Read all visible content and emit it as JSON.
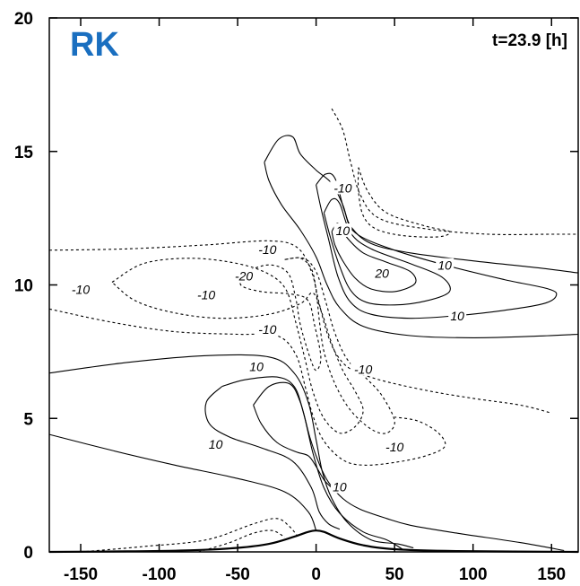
{
  "chart_data": {
    "type": "contour",
    "panel_label": "RK",
    "panel_label_color": "#1a6fc0",
    "time_annotation": "t=23.9 [h]",
    "xlabel": "",
    "ylabel": "",
    "xlim": [
      -170,
      167
    ],
    "ylim": [
      0,
      20
    ],
    "x_ticks": [
      -150,
      -100,
      -50,
      0,
      50,
      100,
      150
    ],
    "y_ticks": [
      0,
      5,
      10,
      15,
      20
    ],
    "x_tick_labels": [
      "-150",
      "-100",
      "-50",
      "0",
      "50",
      "100",
      "150"
    ],
    "y_tick_labels": [
      "0",
      "5",
      "10",
      "15",
      "20"
    ],
    "terrain": [
      [
        -170,
        0.0
      ],
      [
        -120,
        0.02
      ],
      [
        -80,
        0.06
      ],
      [
        -50,
        0.15
      ],
      [
        -30,
        0.3
      ],
      [
        -15,
        0.55
      ],
      [
        -5,
        0.75
      ],
      [
        0,
        0.8
      ],
      [
        5,
        0.75
      ],
      [
        15,
        0.5
      ],
      [
        30,
        0.25
      ],
      [
        50,
        0.1
      ],
      [
        90,
        0.03
      ],
      [
        167,
        0.0
      ]
    ],
    "contours": [
      {
        "level": 10,
        "style": "solid",
        "points": [
          [
            -170,
            6.7
          ],
          [
            -120,
            7.1
          ],
          [
            -70,
            7.35
          ],
          [
            -30,
            7.3
          ],
          [
            -14,
            6.7
          ],
          [
            -5,
            5.6
          ],
          [
            0,
            4.2
          ],
          [
            4,
            3.0
          ],
          [
            10,
            2.0
          ],
          [
            20,
            1.1
          ],
          [
            35,
            0.45
          ],
          [
            52,
            0.3
          ],
          [
            62,
            0.15
          ]
        ]
      },
      {
        "level": 10,
        "style": "solid",
        "points": [
          [
            -170,
            4.4
          ],
          [
            -130,
            3.8
          ],
          [
            -90,
            3.25
          ],
          [
            -50,
            2.75
          ],
          [
            -20,
            2.25
          ],
          [
            -5,
            1.5
          ],
          [
            0,
            0.8
          ]
        ]
      },
      {
        "level": 10,
        "style": "solid",
        "points": [
          [
            -60,
            6.2
          ],
          [
            -45,
            6.45
          ],
          [
            -25,
            6.55
          ],
          [
            -14,
            6.2
          ],
          [
            -8,
            5.2
          ],
          [
            -2,
            3.7
          ],
          [
            5,
            2.4
          ],
          [
            15,
            1.45
          ],
          [
            30,
            0.75
          ],
          [
            45,
            0.45
          ],
          [
            55,
            0.1
          ]
        ]
      },
      {
        "level": 10,
        "style": "solid",
        "points": [
          [
            -60,
            6.2
          ],
          [
            -70,
            5.6
          ],
          [
            -68,
            4.8
          ],
          [
            -55,
            4.3
          ],
          [
            -35,
            3.9
          ],
          [
            -15,
            3.4
          ],
          [
            -3,
            2.4
          ],
          [
            2,
            1.5
          ],
          [
            8,
            1.05
          ],
          [
            15,
            0.85
          ]
        ]
      },
      {
        "level": 10,
        "style": "solid",
        "points": [
          [
            -40,
            5.5
          ],
          [
            -30,
            6.2
          ],
          [
            -17,
            6.3
          ],
          [
            -10,
            5.6
          ],
          [
            -4,
            4.3
          ],
          [
            2,
            3.3
          ],
          [
            8,
            2.6
          ],
          [
            17,
            2.0
          ],
          [
            28,
            1.6
          ],
          [
            45,
            1.25
          ],
          [
            60,
            1.0
          ],
          [
            90,
            0.7
          ],
          [
            130,
            0.35
          ],
          [
            158,
            0.05
          ]
        ]
      },
      {
        "level": 10,
        "style": "solid",
        "points": [
          [
            -40,
            5.5
          ],
          [
            -35,
            4.8
          ],
          [
            -25,
            4.1
          ],
          [
            -13,
            3.75
          ],
          [
            -5,
            3.6
          ],
          [
            0,
            3.2
          ],
          [
            5,
            2.7
          ],
          [
            10,
            2.4
          ]
        ]
      },
      {
        "level": 10,
        "style": "solid",
        "points": [
          [
            -33,
            14.6
          ],
          [
            -24,
            15.45
          ],
          [
            -15,
            15.55
          ],
          [
            -10,
            14.9
          ],
          [
            0,
            14.3
          ],
          [
            10,
            13.8
          ],
          [
            17,
            13.0
          ],
          [
            22,
            12.2
          ],
          [
            35,
            11.55
          ],
          [
            60,
            11.2
          ],
          [
            100,
            10.9
          ],
          [
            140,
            10.65
          ],
          [
            167,
            10.45
          ]
        ]
      },
      {
        "level": 10,
        "style": "solid",
        "points": [
          [
            -33,
            14.6
          ],
          [
            -30,
            13.9
          ],
          [
            -22,
            13.0
          ],
          [
            -10,
            12.05
          ],
          [
            0,
            11.05
          ],
          [
            7,
            10.0
          ],
          [
            15,
            9.15
          ],
          [
            30,
            8.45
          ],
          [
            60,
            8.1
          ],
          [
            100,
            8.02
          ],
          [
            140,
            8.08
          ],
          [
            167,
            8.15
          ]
        ]
      },
      {
        "level": 10,
        "style": "solid",
        "points": [
          [
            0,
            13.75
          ],
          [
            6,
            14.15
          ],
          [
            12,
            14.0
          ],
          [
            18,
            12.8
          ],
          [
            25,
            11.95
          ],
          [
            50,
            11.3
          ],
          [
            85,
            10.7
          ],
          [
            120,
            10.2
          ],
          [
            148,
            9.85
          ],
          [
            153,
            9.6
          ],
          [
            145,
            9.3
          ],
          [
            120,
            9.05
          ],
          [
            90,
            8.85
          ],
          [
            60,
            8.75
          ],
          [
            35,
            8.9
          ],
          [
            22,
            9.35
          ],
          [
            14,
            10.3
          ],
          [
            8,
            11.7
          ],
          [
            3,
            12.9
          ],
          [
            0,
            13.75
          ]
        ]
      },
      {
        "level": 10,
        "style": "solid",
        "points": [
          [
            5,
            12.7
          ],
          [
            10,
            13.2
          ],
          [
            15,
            13.05
          ],
          [
            22,
            11.95
          ],
          [
            35,
            11.35
          ],
          [
            60,
            10.8
          ],
          [
            80,
            10.3
          ],
          [
            85,
            9.75
          ],
          [
            70,
            9.4
          ],
          [
            50,
            9.25
          ],
          [
            32,
            9.35
          ],
          [
            22,
            9.8
          ],
          [
            15,
            10.7
          ],
          [
            9,
            11.8
          ],
          [
            5,
            12.7
          ]
        ]
      },
      {
        "level": 20,
        "style": "solid",
        "points": [
          [
            10,
            12.0
          ],
          [
            14,
            12.3
          ],
          [
            20,
            11.75
          ],
          [
            30,
            11.2
          ],
          [
            45,
            10.85
          ],
          [
            60,
            10.5
          ],
          [
            63,
            10.05
          ],
          [
            50,
            9.75
          ],
          [
            35,
            9.85
          ],
          [
            25,
            10.25
          ],
          [
            17,
            10.9
          ],
          [
            12,
            11.5
          ],
          [
            10,
            12.0
          ]
        ]
      },
      {
        "level": -10,
        "style": "dashed",
        "points": [
          [
            -170,
            11.3
          ],
          [
            -120,
            11.35
          ],
          [
            -70,
            11.5
          ],
          [
            -30,
            11.65
          ],
          [
            -12,
            11.4
          ],
          [
            -3,
            10.5
          ],
          [
            2,
            9.3
          ],
          [
            7,
            8.2
          ],
          [
            13,
            7.4
          ],
          [
            22,
            6.85
          ],
          [
            40,
            6.45
          ],
          [
            70,
            6.05
          ],
          [
            100,
            5.75
          ],
          [
            130,
            5.5
          ],
          [
            150,
            5.2
          ]
        ]
      },
      {
        "level": -10,
        "style": "dashed",
        "points": [
          [
            -170,
            9.1
          ],
          [
            -130,
            8.6
          ],
          [
            -90,
            8.25
          ],
          [
            -50,
            8.15
          ],
          [
            -25,
            8.1
          ],
          [
            -13,
            7.4
          ],
          [
            -7,
            6.2
          ],
          [
            -2,
            5.1
          ],
          [
            5,
            4.15
          ],
          [
            17,
            3.45
          ],
          [
            30,
            3.25
          ],
          [
            50,
            3.35
          ],
          [
            70,
            3.6
          ],
          [
            82,
            3.95
          ],
          [
            78,
            4.45
          ],
          [
            65,
            4.9
          ],
          [
            50,
            5.05
          ]
        ]
      },
      {
        "level": -10,
        "style": "dashed",
        "points": [
          [
            -20,
            10.95
          ],
          [
            -10,
            11.0
          ],
          [
            -3,
            10.6
          ],
          [
            0,
            9.8
          ],
          [
            2,
            8.7
          ],
          [
            5,
            7.5
          ],
          [
            12,
            6.3
          ],
          [
            22,
            5.3
          ],
          [
            35,
            4.6
          ],
          [
            45,
            4.45
          ],
          [
            50,
            4.9
          ],
          [
            42,
            5.85
          ],
          [
            32,
            6.5
          ],
          [
            20,
            7.2
          ],
          [
            12,
            8.2
          ],
          [
            6,
            9.4
          ],
          [
            0,
            10.5
          ],
          [
            -8,
            11.0
          ],
          [
            -20,
            10.95
          ]
        ]
      },
      {
        "level": -10,
        "style": "dashed",
        "points": [
          [
            -130,
            10.1
          ],
          [
            -110,
            10.8
          ],
          [
            -80,
            11.0
          ],
          [
            -50,
            10.8
          ],
          [
            -30,
            10.4
          ],
          [
            -19,
            9.8
          ],
          [
            -13,
            8.6
          ],
          [
            -7,
            7.2
          ],
          [
            -2,
            6.0
          ],
          [
            5,
            5.0
          ],
          [
            15,
            4.45
          ],
          [
            25,
            4.7
          ],
          [
            30,
            5.3
          ],
          [
            25,
            6.0
          ],
          [
            17,
            6.8
          ],
          [
            10,
            7.8
          ],
          [
            4,
            8.9
          ],
          [
            -2,
            9.7
          ],
          [
            -10,
            9.3
          ],
          [
            -30,
            8.9
          ],
          [
            -60,
            8.75
          ],
          [
            -90,
            8.95
          ],
          [
            -115,
            9.4
          ],
          [
            -130,
            10.1
          ]
        ]
      },
      {
        "level": -20,
        "style": "dashed",
        "points": [
          [
            -45,
            10.5
          ],
          [
            -30,
            10.75
          ],
          [
            -18,
            10.45
          ],
          [
            -13,
            9.5
          ],
          [
            -10,
            8.5
          ],
          [
            -4,
            7.3
          ],
          [
            0,
            6.8
          ],
          [
            3,
            7.3
          ],
          [
            -1,
            8.5
          ],
          [
            -5,
            9.4
          ],
          [
            -15,
            9.65
          ],
          [
            -35,
            9.75
          ],
          [
            -48,
            10.0
          ],
          [
            -45,
            10.5
          ]
        ]
      },
      {
        "level": -10,
        "style": "dashed",
        "points": [
          [
            10,
            16.6
          ],
          [
            17,
            15.8
          ],
          [
            22,
            14.6
          ],
          [
            28,
            13.4
          ],
          [
            40,
            12.5
          ],
          [
            70,
            12.1
          ],
          [
            110,
            11.9
          ],
          [
            150,
            11.9
          ],
          [
            167,
            11.9
          ]
        ]
      },
      {
        "level": -10,
        "style": "dashed",
        "points": [
          [
            27,
            14.4
          ],
          [
            33,
            13.5
          ],
          [
            45,
            12.7
          ],
          [
            70,
            12.2
          ],
          [
            85,
            12.0
          ],
          [
            78,
            11.8
          ],
          [
            55,
            11.85
          ],
          [
            38,
            12.1
          ],
          [
            30,
            12.6
          ],
          [
            27,
            13.5
          ],
          [
            27,
            14.4
          ]
        ]
      },
      {
        "level": -10,
        "style": "dashed",
        "points": [
          [
            -150,
            0.0
          ],
          [
            -110,
            0.2
          ],
          [
            -70,
            0.45
          ],
          [
            -40,
            1.05
          ],
          [
            -25,
            1.25
          ],
          [
            -17,
            0.95
          ],
          [
            -12,
            0.6
          ]
        ]
      },
      {
        "level": -10,
        "style": "dashed",
        "points": [
          [
            -75,
            0.0
          ],
          [
            -55,
            0.35
          ],
          [
            -40,
            0.7
          ],
          [
            -28,
            0.8
          ],
          [
            -20,
            0.55
          ]
        ]
      }
    ],
    "contour_labels": [
      {
        "text": "10",
        "x": -38,
        "y": 6.9
      },
      {
        "text": "10",
        "x": -64,
        "y": 4.0
      },
      {
        "text": "10",
        "x": 15,
        "y": 2.4
      },
      {
        "text": "-10",
        "x": -70,
        "y": 9.6
      },
      {
        "text": "-10",
        "x": -150,
        "y": 9.8
      },
      {
        "text": "-20",
        "x": -46,
        "y": 10.3
      },
      {
        "text": "-10",
        "x": -31,
        "y": 11.3
      },
      {
        "text": "-10",
        "x": -31,
        "y": 8.3
      },
      {
        "text": "-10",
        "x": 30,
        "y": 6.8
      },
      {
        "text": "-10",
        "x": 50,
        "y": 3.9
      },
      {
        "text": "-10",
        "x": 17,
        "y": 13.6
      },
      {
        "text": "10",
        "x": 17,
        "y": 12.0
      },
      {
        "text": "20",
        "x": 42,
        "y": 10.4
      },
      {
        "text": "10",
        "x": 82,
        "y": 10.7
      },
      {
        "text": "10",
        "x": 90,
        "y": 8.8
      }
    ],
    "grid": false,
    "legend": "none"
  }
}
